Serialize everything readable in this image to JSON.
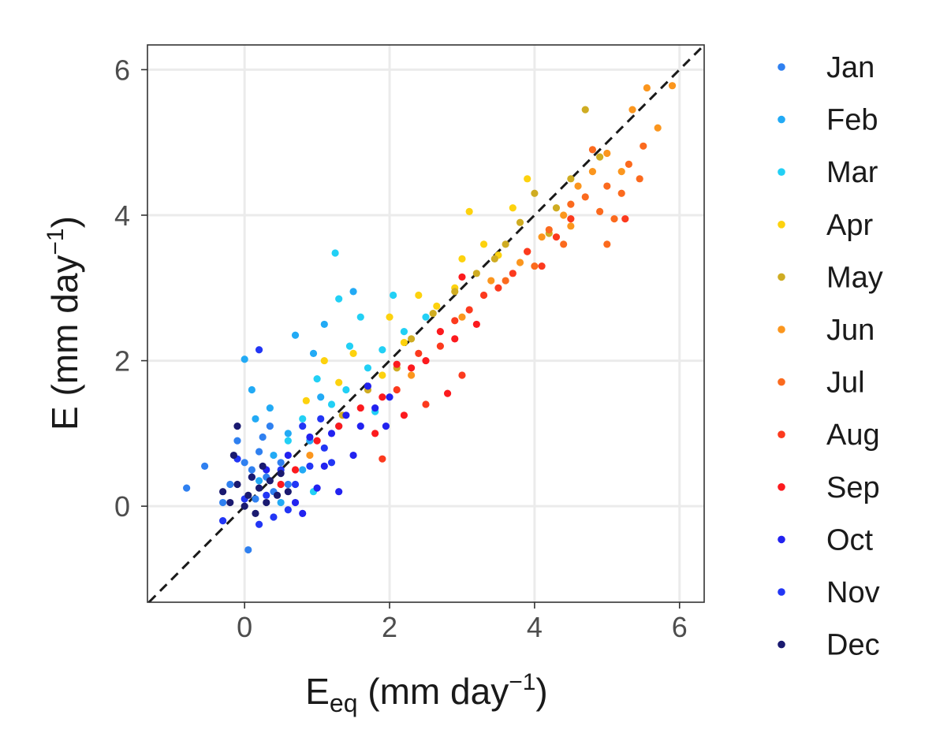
{
  "chart_data": {
    "type": "scatter",
    "title": "",
    "xlabel": {
      "main": "E",
      "sub": "eq",
      "rest": " (mm day",
      "sup": "−1",
      "close": ")"
    },
    "ylabel": {
      "main": "E (mm day",
      "sup": "−1",
      "close": ")"
    },
    "xlim": [
      -1.34,
      6.34
    ],
    "ylim": [
      -1.32,
      6.34
    ],
    "xticks": [
      "0",
      "2",
      "4",
      "6"
    ],
    "yticks": [
      "0",
      "2",
      "4",
      "6"
    ],
    "grid": true,
    "reference_line": {
      "type": "1:1",
      "style": "dashed",
      "color": "#1a1a1a"
    },
    "legend_position": "right",
    "series": [
      {
        "name": "Jan",
        "color": "#2f80f0",
        "points": [
          [
            -0.8,
            0.25
          ],
          [
            0.05,
            -0.6
          ],
          [
            -0.55,
            0.55
          ],
          [
            -0.2,
            0.3
          ],
          [
            0.0,
            0.6
          ],
          [
            0.1,
            0.5
          ],
          [
            0.2,
            0.75
          ],
          [
            0.3,
            0.4
          ],
          [
            0.15,
            0.1
          ],
          [
            0.4,
            0.2
          ],
          [
            -0.1,
            0.9
          ],
          [
            0.5,
            0.6
          ],
          [
            0.25,
            0.95
          ],
          [
            0.6,
            0.3
          ],
          [
            -0.3,
            0.05
          ],
          [
            0.35,
            1.1
          ]
        ]
      },
      {
        "name": "Feb",
        "color": "#22aaf5",
        "points": [
          [
            0.0,
            2.02
          ],
          [
            0.15,
            1.2
          ],
          [
            0.35,
            1.35
          ],
          [
            0.7,
            2.35
          ],
          [
            1.05,
            1.5
          ],
          [
            0.9,
            0.9
          ],
          [
            0.6,
            1.0
          ],
          [
            0.4,
            0.7
          ],
          [
            0.2,
            0.35
          ],
          [
            1.3,
            1.1
          ],
          [
            0.8,
            0.5
          ],
          [
            0.5,
            0.05
          ],
          [
            1.1,
            2.5
          ],
          [
            0.95,
            2.1
          ],
          [
            0.1,
            1.6
          ],
          [
            1.5,
            2.95
          ]
        ]
      },
      {
        "name": "Mar",
        "color": "#22d0f5",
        "points": [
          [
            1.25,
            3.48
          ],
          [
            1.3,
            2.85
          ],
          [
            1.6,
            2.6
          ],
          [
            1.45,
            2.2
          ],
          [
            1.0,
            1.75
          ],
          [
            1.2,
            1.4
          ],
          [
            0.8,
            1.2
          ],
          [
            1.7,
            1.9
          ],
          [
            2.05,
            2.9
          ],
          [
            2.2,
            2.4
          ],
          [
            1.9,
            2.15
          ],
          [
            1.4,
            1.6
          ],
          [
            0.6,
            0.9
          ],
          [
            0.95,
            0.2
          ],
          [
            1.8,
            1.3
          ],
          [
            2.5,
            2.6
          ]
        ]
      },
      {
        "name": "Apr",
        "color": "#fdd20e",
        "points": [
          [
            1.1,
            2.0
          ],
          [
            1.3,
            1.7
          ],
          [
            1.5,
            2.1
          ],
          [
            1.9,
            1.8
          ],
          [
            2.2,
            2.25
          ],
          [
            2.4,
            2.9
          ],
          [
            2.65,
            2.75
          ],
          [
            2.9,
            3.0
          ],
          [
            3.1,
            4.05
          ],
          [
            3.0,
            3.4
          ],
          [
            3.3,
            3.6
          ],
          [
            3.5,
            3.45
          ],
          [
            3.7,
            4.1
          ],
          [
            0.85,
            1.45
          ],
          [
            2.0,
            2.6
          ],
          [
            3.9,
            4.5
          ]
        ]
      },
      {
        "name": "May",
        "color": "#cfac22",
        "points": [
          [
            1.7,
            1.6
          ],
          [
            2.3,
            2.3
          ],
          [
            2.6,
            2.65
          ],
          [
            2.9,
            2.95
          ],
          [
            3.2,
            3.2
          ],
          [
            3.45,
            3.4
          ],
          [
            3.8,
            3.9
          ],
          [
            4.0,
            4.3
          ],
          [
            4.3,
            4.1
          ],
          [
            4.5,
            4.5
          ],
          [
            4.7,
            5.45
          ],
          [
            3.6,
            3.6
          ],
          [
            1.35,
            1.25
          ],
          [
            2.1,
            1.9
          ],
          [
            4.2,
            3.75
          ],
          [
            4.9,
            4.8
          ]
        ]
      },
      {
        "name": "Jun",
        "color": "#fb961e",
        "points": [
          [
            3.0,
            2.6
          ],
          [
            3.4,
            3.1
          ],
          [
            3.8,
            3.35
          ],
          [
            4.1,
            3.7
          ],
          [
            4.4,
            4.0
          ],
          [
            4.6,
            4.4
          ],
          [
            4.8,
            4.6
          ],
          [
            5.0,
            4.85
          ],
          [
            5.2,
            4.6
          ],
          [
            5.35,
            5.45
          ],
          [
            5.55,
            5.75
          ],
          [
            5.9,
            5.78
          ],
          [
            5.7,
            5.2
          ],
          [
            4.5,
            3.85
          ],
          [
            2.3,
            1.8
          ],
          [
            0.9,
            0.7
          ]
        ]
      },
      {
        "name": "Jul",
        "color": "#fb6a1e",
        "points": [
          [
            3.6,
            3.1
          ],
          [
            3.9,
            3.5
          ],
          [
            4.2,
            3.8
          ],
          [
            4.5,
            4.15
          ],
          [
            4.7,
            4.25
          ],
          [
            4.9,
            4.05
          ],
          [
            5.0,
            4.4
          ],
          [
            5.1,
            3.95
          ],
          [
            5.3,
            4.7
          ],
          [
            5.5,
            4.95
          ],
          [
            4.8,
            4.9
          ],
          [
            5.2,
            4.3
          ],
          [
            4.4,
            3.6
          ],
          [
            5.45,
            4.5
          ],
          [
            4.0,
            3.3
          ],
          [
            5.0,
            3.6
          ]
        ]
      },
      {
        "name": "Aug",
        "color": "#fc3a1e",
        "points": [
          [
            2.1,
            1.6
          ],
          [
            2.4,
            2.1
          ],
          [
            2.7,
            2.2
          ],
          [
            2.9,
            2.55
          ],
          [
            3.1,
            2.7
          ],
          [
            3.3,
            2.9
          ],
          [
            3.5,
            3.0
          ],
          [
            3.7,
            3.2
          ],
          [
            3.9,
            3.5
          ],
          [
            4.1,
            3.3
          ],
          [
            4.3,
            3.7
          ],
          [
            4.5,
            3.95
          ],
          [
            3.0,
            1.8
          ],
          [
            2.5,
            1.4
          ],
          [
            1.9,
            0.65
          ],
          [
            5.25,
            3.95
          ]
        ]
      },
      {
        "name": "Sep",
        "color": "#fc1a1e",
        "points": [
          [
            0.7,
            0.5
          ],
          [
            1.0,
            0.9
          ],
          [
            1.3,
            1.1
          ],
          [
            1.6,
            1.35
          ],
          [
            1.9,
            1.5
          ],
          [
            2.1,
            1.95
          ],
          [
            2.3,
            1.9
          ],
          [
            2.5,
            2.0
          ],
          [
            2.7,
            2.4
          ],
          [
            2.9,
            2.3
          ],
          [
            3.0,
            3.15
          ],
          [
            3.2,
            2.5
          ],
          [
            2.8,
            1.55
          ],
          [
            2.2,
            1.25
          ],
          [
            0.5,
            0.3
          ],
          [
            1.8,
            1.0
          ]
        ]
      },
      {
        "name": "Oct",
        "color": "#2222f0",
        "points": [
          [
            0.3,
            0.5
          ],
          [
            0.6,
            0.7
          ],
          [
            0.9,
            0.95
          ],
          [
            1.2,
            1.0
          ],
          [
            1.4,
            1.25
          ],
          [
            1.6,
            1.1
          ],
          [
            1.8,
            1.35
          ],
          [
            2.0,
            1.5
          ],
          [
            1.1,
            0.55
          ],
          [
            1.5,
            0.7
          ],
          [
            1.3,
            0.2
          ],
          [
            0.8,
            -0.1
          ],
          [
            1.0,
            0.25
          ],
          [
            1.7,
            1.65
          ],
          [
            0.7,
            0.05
          ],
          [
            1.95,
            1.1
          ]
        ]
      },
      {
        "name": "Nov",
        "color": "#2236f5",
        "points": [
          [
            0.2,
            2.15
          ],
          [
            -0.3,
            -0.2
          ],
          [
            0.0,
            0.1
          ],
          [
            0.1,
            0.4
          ],
          [
            0.3,
            0.15
          ],
          [
            0.5,
            0.5
          ],
          [
            0.7,
            0.3
          ],
          [
            0.9,
            0.55
          ],
          [
            1.1,
            0.8
          ],
          [
            0.4,
            -0.15
          ],
          [
            0.6,
            -0.05
          ],
          [
            0.2,
            -0.25
          ],
          [
            0.8,
            1.1
          ],
          [
            1.2,
            0.6
          ],
          [
            -0.1,
            0.65
          ],
          [
            1.05,
            1.2
          ]
        ]
      },
      {
        "name": "Dec",
        "color": "#1a1a70",
        "points": [
          [
            -0.3,
            0.2
          ],
          [
            -0.2,
            0.05
          ],
          [
            -0.1,
            0.3
          ],
          [
            0.0,
            0.0
          ],
          [
            0.05,
            0.15
          ],
          [
            0.1,
            0.4
          ],
          [
            0.2,
            0.25
          ],
          [
            0.3,
            0.05
          ],
          [
            0.35,
            0.35
          ],
          [
            0.45,
            0.15
          ],
          [
            0.5,
            0.45
          ],
          [
            0.15,
            -0.1
          ],
          [
            -0.15,
            0.7
          ],
          [
            0.25,
            0.55
          ],
          [
            -0.1,
            1.1
          ],
          [
            0.6,
            0.2
          ]
        ]
      }
    ]
  }
}
